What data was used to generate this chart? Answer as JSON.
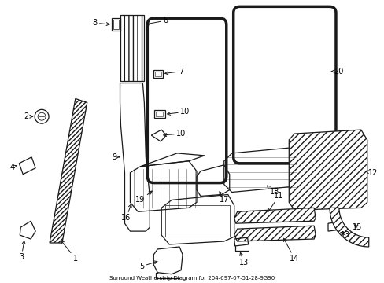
{
  "title": "Surround Weatherstrip Diagram for 204-697-07-51-28-9G90",
  "bg_color": "#ffffff",
  "fig_width": 4.89,
  "fig_height": 3.6,
  "dpi": 100,
  "line_color": "#1a1a1a",
  "label_fontsize": 7.0
}
